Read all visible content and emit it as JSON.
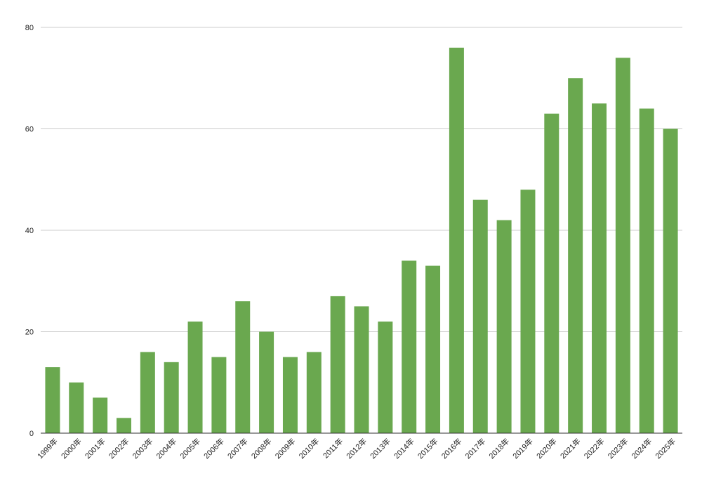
{
  "chart_data": {
    "type": "bar",
    "title": "",
    "xlabel": "",
    "ylabel": "",
    "categories": [
      "1999年",
      "2000年",
      "2001年",
      "2002年",
      "2003年",
      "2004年",
      "2005年",
      "2006年",
      "2007年",
      "2008年",
      "2009年",
      "2010年",
      "2011年",
      "2012年",
      "2013年",
      "2014年",
      "2015年",
      "2016年",
      "2017年",
      "2018年",
      "2019年",
      "2020年",
      "2021年",
      "2022年",
      "2023年",
      "2024年",
      "2025年"
    ],
    "values": [
      13,
      10,
      7,
      3,
      16,
      14,
      22,
      15,
      26,
      20,
      15,
      16,
      27,
      25,
      22,
      34,
      33,
      76,
      46,
      42,
      48,
      63,
      70,
      65,
      74,
      64,
      60
    ],
    "ylim": [
      0,
      80
    ],
    "yticks": [
      0,
      20,
      40,
      60,
      80
    ],
    "grid": true,
    "legend": "none",
    "bar_color": "#6aa84f"
  }
}
